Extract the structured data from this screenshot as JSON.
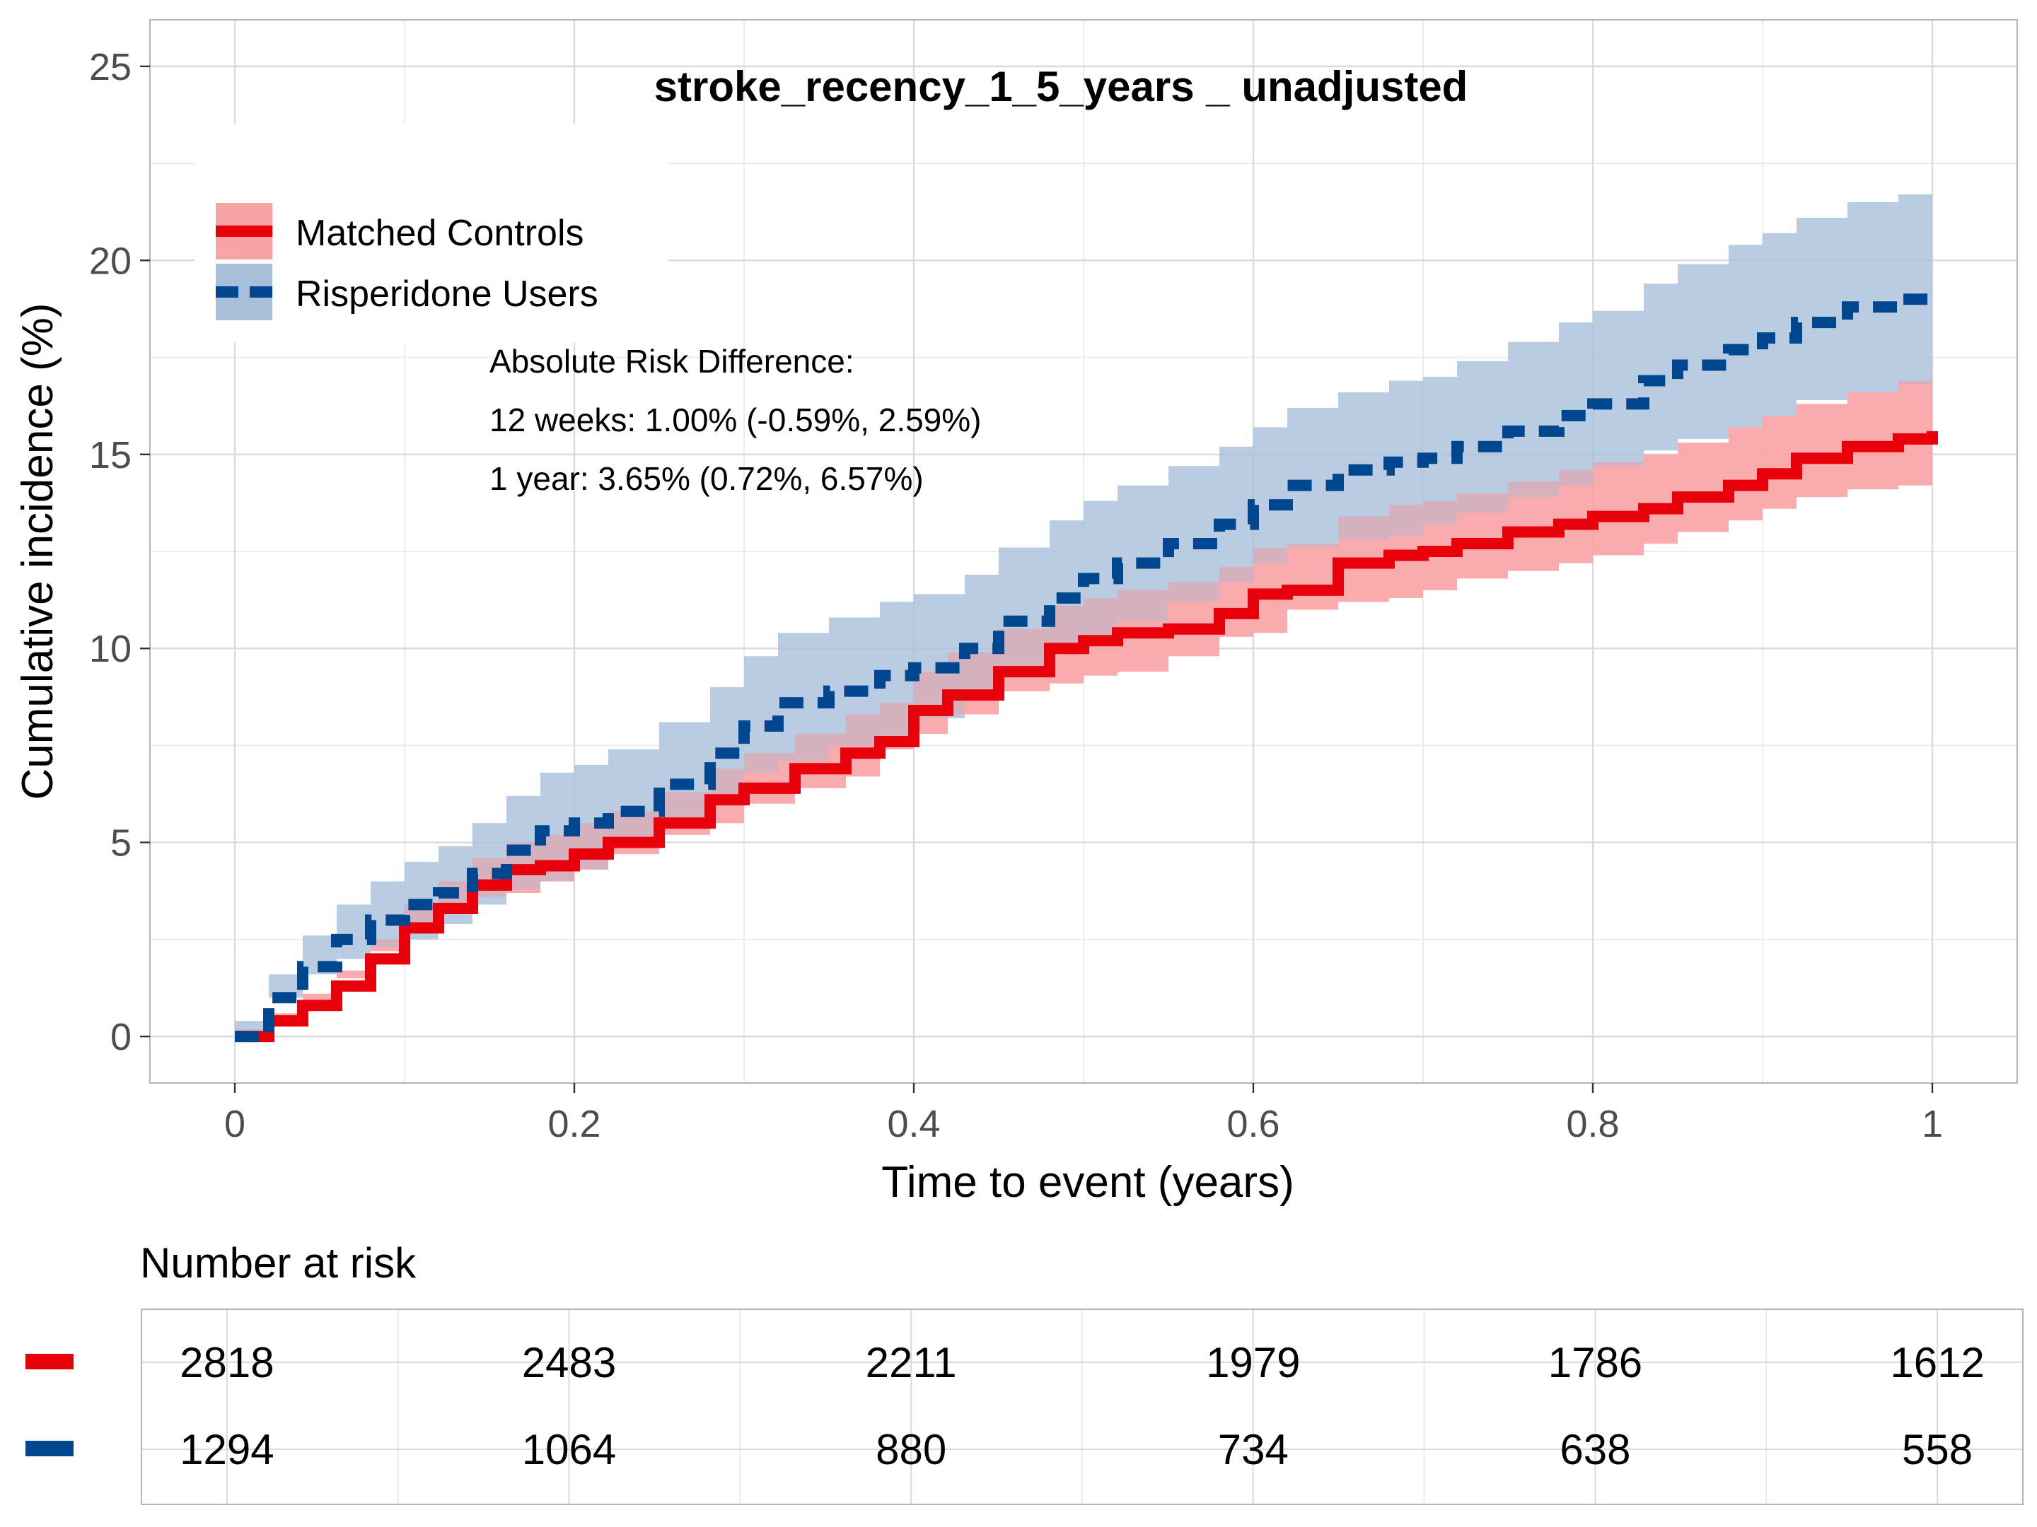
{
  "colors": {
    "controls_line": "#e8000b",
    "controls_band": "#f8a3a6",
    "users_line": "#00478f",
    "users_band": "#a7bfd9",
    "grid_major": "#dadada",
    "grid_minor": "#ececec",
    "frame": "#b3b3b3"
  },
  "chart_data": {
    "type": "line",
    "title": "stroke_recency_1_5_years _ unadjusted",
    "xlabel": "Time to event (years)",
    "ylabel": "Cumulative incidence (%)",
    "xlim": [
      -0.05,
      1.05
    ],
    "ylim": [
      -1.2,
      26.2
    ],
    "x_ticks": [
      0,
      0.2,
      0.4,
      0.6,
      0.8,
      1
    ],
    "x_tick_labels": [
      "0",
      "0.2",
      "0.4",
      "0.6",
      "0.8",
      "1"
    ],
    "y_ticks": [
      0,
      5,
      10,
      15,
      20,
      25
    ],
    "y_tick_labels": [
      "0",
      "5",
      "10",
      "15",
      "20",
      "25"
    ],
    "grid": true,
    "legend_position": "top-left",
    "series": [
      {
        "name": "Matched Controls",
        "line_style": "solid",
        "x": [
          0,
          0.02,
          0.04,
          0.06,
          0.08,
          0.1,
          0.12,
          0.14,
          0.16,
          0.18,
          0.2,
          0.22,
          0.25,
          0.28,
          0.3,
          0.33,
          0.36,
          0.38,
          0.4,
          0.42,
          0.45,
          0.48,
          0.5,
          0.52,
          0.55,
          0.58,
          0.6,
          0.62,
          0.65,
          0.68,
          0.7,
          0.72,
          0.75,
          0.78,
          0.8,
          0.83,
          0.85,
          0.88,
          0.9,
          0.92,
          0.95,
          0.98,
          1.0
        ],
        "y": [
          0,
          0.4,
          0.8,
          1.3,
          2.0,
          2.8,
          3.3,
          3.9,
          4.3,
          4.4,
          4.7,
          5.0,
          5.5,
          6.1,
          6.4,
          6.9,
          7.3,
          7.6,
          8.4,
          8.8,
          9.4,
          10.0,
          10.2,
          10.4,
          10.5,
          10.9,
          11.4,
          11.5,
          12.2,
          12.4,
          12.5,
          12.7,
          13.0,
          13.2,
          13.4,
          13.6,
          13.9,
          14.2,
          14.5,
          14.9,
          15.2,
          15.4,
          15.6
        ],
        "lower": [
          0,
          0.2,
          0.5,
          0.9,
          1.5,
          2.2,
          2.7,
          3.2,
          3.6,
          3.7,
          4.0,
          4.3,
          4.7,
          5.2,
          5.5,
          6.0,
          6.4,
          6.7,
          7.4,
          7.8,
          8.3,
          8.9,
          9.1,
          9.3,
          9.4,
          9.8,
          10.3,
          10.4,
          11.0,
          11.2,
          11.3,
          11.5,
          11.8,
          12.0,
          12.2,
          12.4,
          12.7,
          13.0,
          13.3,
          13.6,
          13.9,
          14.1,
          14.2
        ],
        "upper": [
          0,
          0.6,
          1.1,
          1.7,
          2.5,
          3.4,
          4.0,
          4.6,
          5.0,
          5.2,
          5.5,
          5.8,
          6.3,
          6.9,
          7.3,
          7.8,
          8.3,
          8.6,
          9.4,
          9.9,
          10.5,
          11.1,
          11.3,
          11.5,
          11.7,
          12.1,
          12.6,
          12.7,
          13.4,
          13.7,
          13.8,
          14.0,
          14.3,
          14.6,
          14.8,
          15.0,
          15.3,
          15.7,
          16.0,
          16.3,
          16.6,
          16.9,
          17.0
        ]
      },
      {
        "name": "Risperidone Users",
        "line_style": "dashed",
        "x": [
          0,
          0.02,
          0.04,
          0.06,
          0.08,
          0.1,
          0.12,
          0.14,
          0.16,
          0.18,
          0.2,
          0.22,
          0.25,
          0.28,
          0.3,
          0.32,
          0.35,
          0.38,
          0.4,
          0.43,
          0.45,
          0.48,
          0.5,
          0.52,
          0.55,
          0.58,
          0.6,
          0.62,
          0.65,
          0.68,
          0.7,
          0.72,
          0.75,
          0.78,
          0.8,
          0.83,
          0.85,
          0.88,
          0.9,
          0.92,
          0.95,
          0.98,
          1.0
        ],
        "y": [
          0,
          1.0,
          1.8,
          2.5,
          3.0,
          3.4,
          3.7,
          4.2,
          4.8,
          5.3,
          5.5,
          5.8,
          6.5,
          7.3,
          8.0,
          8.6,
          8.9,
          9.3,
          9.5,
          10.0,
          10.7,
          11.3,
          11.8,
          12.2,
          12.7,
          13.2,
          13.7,
          14.2,
          14.6,
          14.8,
          14.9,
          15.2,
          15.6,
          16.0,
          16.3,
          16.9,
          17.3,
          17.7,
          18.0,
          18.4,
          18.8,
          19.0,
          19.2
        ],
        "lower": [
          0,
          0.4,
          1.0,
          1.6,
          2.0,
          2.3,
          2.5,
          2.9,
          3.4,
          3.8,
          4.0,
          4.3,
          4.9,
          5.6,
          6.2,
          6.8,
          7.1,
          7.5,
          7.7,
          8.2,
          8.8,
          9.4,
          9.9,
          10.3,
          10.7,
          11.2,
          11.7,
          12.2,
          12.6,
          12.8,
          12.9,
          13.2,
          13.5,
          13.9,
          14.2,
          14.7,
          15.1,
          15.4,
          15.7,
          16.0,
          16.4,
          16.6,
          16.8
        ],
        "upper": [
          0,
          1.6,
          2.6,
          3.4,
          4.0,
          4.5,
          4.9,
          5.5,
          6.2,
          6.8,
          7.0,
          7.4,
          8.1,
          9.0,
          9.8,
          10.4,
          10.8,
          11.2,
          11.4,
          11.9,
          12.6,
          13.3,
          13.8,
          14.2,
          14.7,
          15.2,
          15.7,
          16.2,
          16.6,
          16.9,
          17.0,
          17.4,
          17.9,
          18.4,
          18.7,
          19.4,
          19.9,
          20.4,
          20.7,
          21.1,
          21.5,
          21.7,
          21.8
        ]
      }
    ],
    "annotation": {
      "lines": [
        "Absolute Risk Difference:",
        "12 weeks: 1.00% (-0.59%, 2.59%)",
        "1 year: 3.65% (0.72%, 6.57%)"
      ]
    },
    "risk_table": {
      "title": "Number at risk",
      "time_points": [
        0,
        0.2,
        0.4,
        0.6,
        0.8,
        1
      ],
      "rows": [
        {
          "series": "Matched Controls",
          "counts": [
            "2818",
            "2483",
            "2211",
            "1979",
            "1786",
            "1612"
          ]
        },
        {
          "series": "Risperidone Users",
          "counts": [
            "1294",
            "1064",
            "880",
            "734",
            "638",
            "558"
          ]
        }
      ]
    }
  }
}
